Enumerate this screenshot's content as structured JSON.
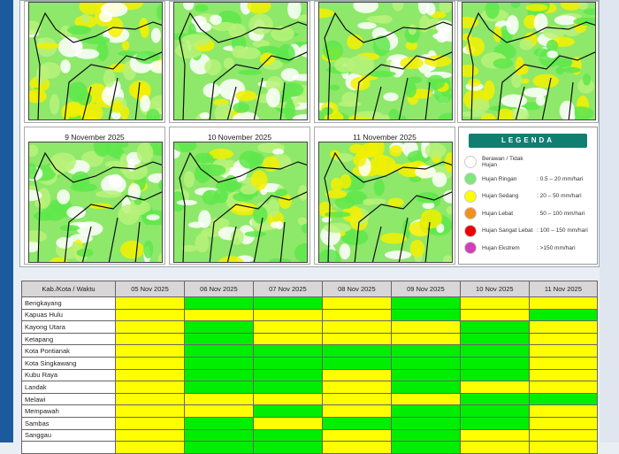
{
  "maps": {
    "tiles": [
      {
        "title": "",
        "seed": 1,
        "yellow": 0.45
      },
      {
        "title": "",
        "seed": 2,
        "yellow": 0.1
      },
      {
        "title": "",
        "seed": 3,
        "yellow": 0.35
      },
      {
        "title": "",
        "seed": 4,
        "yellow": 0.3
      },
      {
        "title": "9 November 2025",
        "seed": 5,
        "yellow": 0.15
      },
      {
        "title": "10 November 2025",
        "seed": 6,
        "yellow": 0.1
      },
      {
        "title": "11 November 2025",
        "seed": 7,
        "yellow": 0.4
      }
    ]
  },
  "legend": {
    "title": "LEGENDA",
    "items": [
      {
        "name": "Berawan / Tidak Hujan",
        "range": "",
        "color": "#ffffff"
      },
      {
        "name": "Hujan Ringan",
        "range": ": 0.5 – 20 mm/hari",
        "color": "#7ee87a"
      },
      {
        "name": "Hujan Sedang",
        "range": ": 20 – 50 mm/hari",
        "color": "#ffff00"
      },
      {
        "name": "Hujan Lebat",
        "range": ": 50 – 100 mm/hari",
        "color": "#f0901e"
      },
      {
        "name": "Hujan Sangat Lebat",
        "range": ": 100 – 150 mm/hari",
        "color": "#ee0000"
      },
      {
        "name": "Hujan Ekstrem",
        "range": ": >150 mm/hari",
        "color": "#d040b8"
      }
    ]
  },
  "table": {
    "header": [
      "Kab./Kota / Waktu",
      "05 Nov 2025",
      "06 Nov 2025",
      "07 Nov 2025",
      "08 Nov 2025",
      "09 Nov 2025",
      "10 Nov 2025",
      "11 Nov 2025"
    ],
    "status_colors": {
      "Y": "Hujan Sedang",
      "G": "Hujan Ringan"
    },
    "rows": [
      {
        "name": "Bengkayang",
        "v": "YGGYGYY"
      },
      {
        "name": "Kapuas Hulu",
        "v": "YYYYGYG"
      },
      {
        "name": "Kayong Utara",
        "v": "YGYYYGY"
      },
      {
        "name": "Ketapang",
        "v": "YGYYYGY"
      },
      {
        "name": "Kota Pontianak",
        "v": "YGGGGGY"
      },
      {
        "name": "Kota Singkawang",
        "v": "YGGGGGY"
      },
      {
        "name": "Kubu Raya",
        "v": "YGGYGGY"
      },
      {
        "name": "Landak",
        "v": "YGGYGYY"
      },
      {
        "name": "Melawi",
        "v": "YYYYYGG"
      },
      {
        "name": "Mempawah",
        "v": "YYGYGGY"
      },
      {
        "name": "Sambas",
        "v": "YGYGGGY"
      },
      {
        "name": "Sanggau",
        "v": "YGGYGYY"
      },
      {
        "name": "",
        "v": "YGGYGYY"
      }
    ]
  }
}
